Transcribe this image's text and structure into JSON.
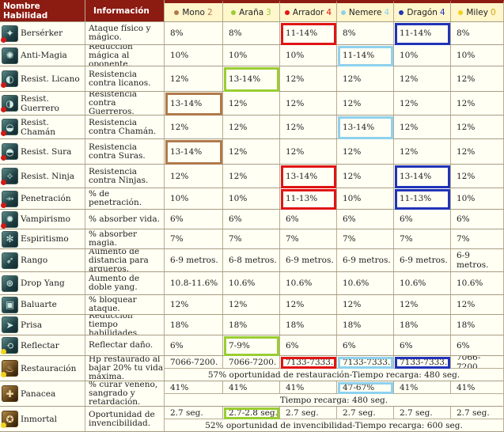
{
  "colors": {
    "mono": "#b07a4c",
    "arana": "#9acd32",
    "arrador": "#e01414",
    "nemere": "#8fd1ee",
    "dragon": "#2133b8",
    "miley": "#f2d21a"
  },
  "header": {
    "name_col": "Nombre Habilidad",
    "info_col": "Información",
    "guardians": [
      {
        "label": "Mono",
        "count": "2",
        "color": "#b07a4c"
      },
      {
        "label": "Araña",
        "count": "3",
        "color": "#9acd32"
      },
      {
        "label": "Arrador",
        "count": "4",
        "color": "#e01414"
      },
      {
        "label": "Nemere",
        "count": "4",
        "color": "#8fd1ee"
      },
      {
        "label": "Dragón",
        "count": "4",
        "color": "#2133b8"
      },
      {
        "label": "Miley",
        "count": "0",
        "color": "#f2d21a"
      }
    ]
  },
  "rows": [
    {
      "name": "Bersérker",
      "icon": "berserker-icon",
      "gold": false,
      "dot": "red",
      "info": "Ataque físico y mágico.",
      "values": [
        "8%",
        "8%",
        "11-14%",
        "8%",
        "11-14%",
        "8%"
      ]
    },
    {
      "name": "Anti-Magia",
      "icon": "anti-magic-icon",
      "gold": false,
      "dot": "",
      "info": "Reducción mágica al oponente.",
      "values": [
        "10%",
        "10%",
        "10%",
        "11-14%",
        "10%",
        "10%"
      ]
    },
    {
      "name": "Resist. Licano",
      "icon": "wolf-icon",
      "gold": false,
      "dot": "red",
      "info": "Resistencia contra licanos.",
      "values": [
        "12%",
        "13-14%",
        "12%",
        "12%",
        "12%",
        "12%"
      ]
    },
    {
      "name": "Resist. Guerrero",
      "icon": "warrior-icon",
      "gold": false,
      "dot": "red",
      "info": "Resistencia contra Guerreros.",
      "values": [
        "13-14%",
        "12%",
        "12%",
        "12%",
        "12%",
        "12%"
      ]
    },
    {
      "name": "Resist. Chamán",
      "icon": "shaman-icon",
      "gold": false,
      "dot": "red",
      "info": "Resistencia contra Chamán.",
      "values": [
        "12%",
        "12%",
        "12%",
        "13-14%",
        "12%",
        "12%"
      ]
    },
    {
      "name": "Resist. Sura",
      "icon": "sura-icon",
      "gold": false,
      "dot": "red",
      "info": "Resistencia contra Suras.",
      "values": [
        "13-14%",
        "12%",
        "12%",
        "12%",
        "12%",
        "12%"
      ]
    },
    {
      "name": "Resist. Ninja",
      "icon": "ninja-icon",
      "gold": false,
      "dot": "red",
      "info": "Resistencia contra Ninjas.",
      "values": [
        "12%",
        "12%",
        "13-14%",
        "12%",
        "13-14%",
        "12%"
      ]
    },
    {
      "name": "Penetración",
      "icon": "penetration-icon",
      "gold": false,
      "dot": "red",
      "info": "% de penetración.",
      "values": [
        "10%",
        "10%",
        "11-13%",
        "10%",
        "11-13%",
        "10%"
      ]
    },
    {
      "name": "Vampirismo",
      "icon": "vampire-icon",
      "gold": false,
      "dot": "red",
      "info": "% absorber vida.",
      "values": [
        "6%",
        "6%",
        "6%",
        "6%",
        "6%",
        "6%"
      ]
    },
    {
      "name": "Espiritismo",
      "icon": "spirit-icon",
      "gold": false,
      "dot": "",
      "info": "% absorber magia.",
      "values": [
        "7%",
        "7%",
        "7%",
        "7%",
        "7%",
        "7%"
      ]
    },
    {
      "name": "Rango",
      "icon": "range-icon",
      "gold": false,
      "dot": "",
      "info": "Aumento de distancia para arqueros.",
      "values": [
        "6-9 metros.",
        "6-8 metros.",
        "6-9 metros.",
        "6-9 metros.",
        "6-9 metros.",
        "6-9 metros."
      ]
    },
    {
      "name": "Drop Yang",
      "icon": "yang-icon",
      "gold": false,
      "dot": "",
      "info": "Aumento de doble yang.",
      "values": [
        "10.8-11.6%",
        "10.6%",
        "10.6%",
        "10.6%",
        "10.6%",
        "10.6%"
      ]
    },
    {
      "name": "Baluarte",
      "icon": "bulwark-icon",
      "gold": false,
      "dot": "",
      "info": "% bloquear ataque.",
      "values": [
        "12%",
        "12%",
        "12%",
        "12%",
        "12%",
        "12%"
      ]
    },
    {
      "name": "Prisa",
      "icon": "haste-icon",
      "gold": false,
      "dot": "",
      "info": "Reducción tiempo habilidades.",
      "values": [
        "18%",
        "18%",
        "18%",
        "18%",
        "18%",
        "18%"
      ]
    },
    {
      "name": "Reflectar",
      "icon": "reflect-icon",
      "gold": false,
      "dot": "yellow",
      "info": "Reflectar daño.",
      "values": [
        "6%",
        "7-9%",
        "6%",
        "6%",
        "6%",
        "6%"
      ]
    }
  ],
  "special": [
    {
      "name": "Restauración",
      "icon": "restoration-icon",
      "dot": "yellow",
      "info": "Hp restaurado al bajar 20% tu vida máxima.",
      "values": [
        "7066-7200.",
        "7066-7200.",
        "7133-7333.",
        "7133-7333.",
        "7133-7333.",
        "7066-7200."
      ],
      "note": "57% oportunidad de restauración-Tiempo recarga: 480 seg."
    },
    {
      "name": "Panacea",
      "icon": "panacea-icon",
      "dot": "",
      "info": "% curar veneno, sangrado y retardación.",
      "values": [
        "41%",
        "41%",
        "41%",
        "47-67%",
        "41%",
        "41%"
      ],
      "note": "Tiempo recarga: 480 seg."
    },
    {
      "name": "Inmortal",
      "icon": "immortal-icon",
      "dot": "yellow",
      "info": "Oportunidad de invencibilidad.",
      "values": [
        "2.7 seg.",
        "2.7-2.8 seg.",
        "2.7 seg.",
        "2.7 seg.",
        "2.7 seg.",
        "2.7 seg."
      ],
      "note": "52% oportunidad de invencibilidad-Tiempo recarga: 600 seg."
    }
  ]
}
